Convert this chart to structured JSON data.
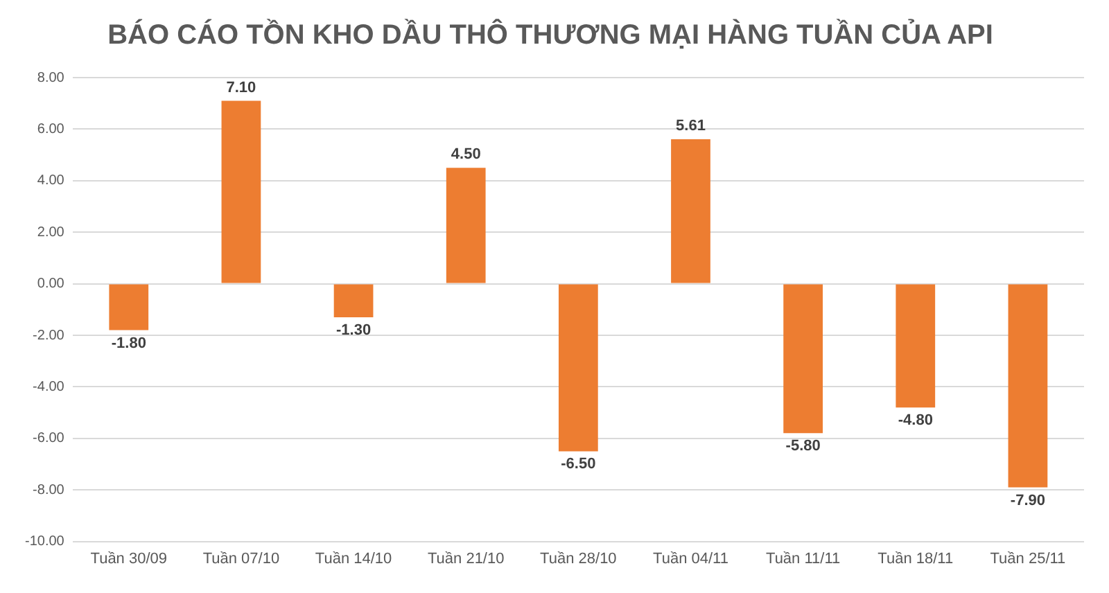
{
  "chart_data": {
    "type": "bar",
    "title": "BÁO CÁO TỒN KHO DẦU THÔ THƯƠNG MẠI HÀNG TUẦN CỦA API",
    "categories": [
      "Tuần 30/09",
      "Tuần 07/10",
      "Tuần 14/10",
      "Tuần 21/10",
      "Tuần 28/10",
      "Tuần 04/11",
      "Tuần 11/11",
      "Tuần 18/11",
      "Tuần 25/11"
    ],
    "values": [
      -1.8,
      7.1,
      -1.3,
      4.5,
      -6.5,
      5.61,
      -5.8,
      -4.8,
      -7.9
    ],
    "value_labels": [
      "-1.80",
      "7.10",
      "-1.30",
      "4.50",
      "-6.50",
      "5.61",
      "-5.80",
      "-4.80",
      "-7.90"
    ],
    "color": "#ed7d31",
    "ylim": [
      -10,
      8
    ],
    "yticks": [
      {
        "value": -10,
        "label": "-10.00"
      },
      {
        "value": -8,
        "label": "-8.00"
      },
      {
        "value": -6,
        "label": "-6.00"
      },
      {
        "value": -4,
        "label": "-4.00"
      },
      {
        "value": -2,
        "label": "-2.00"
      },
      {
        "value": 0,
        "label": "0.00"
      },
      {
        "value": 2,
        "label": "2.00"
      },
      {
        "value": 4,
        "label": "4.00"
      },
      {
        "value": 6,
        "label": "6.00"
      },
      {
        "value": 8,
        "label": "8.00"
      }
    ],
    "grid": "y"
  }
}
